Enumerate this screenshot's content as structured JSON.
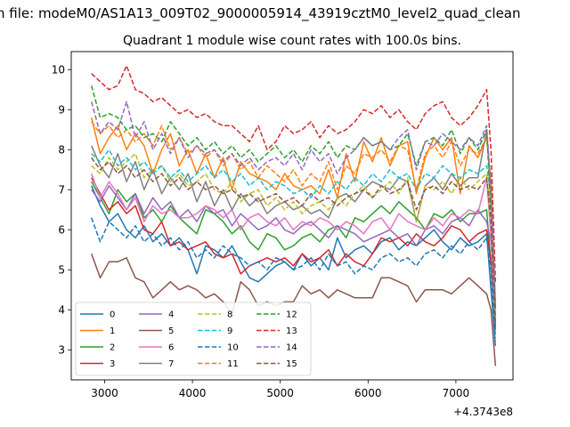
{
  "figure": {
    "suptitle": "n file: modeM0/AS1A13_009T02_9000005914_43919cztM0_level2_quad_clean"
  },
  "chart_data": {
    "type": "line",
    "title": "Quadrant 1 module wise count rates with 100.0s bins.",
    "xlabel": "",
    "ylabel": "",
    "x_offset_label": "+4.3743e8",
    "xlim": [
      2620,
      7650
    ],
    "ylim": [
      2.25,
      10.45
    ],
    "xticks": [
      3000,
      4000,
      5000,
      6000,
      7000
    ],
    "yticks": [
      3,
      4,
      5,
      6,
      7,
      8,
      9,
      10
    ],
    "grid": false,
    "legend_position": "lower-left",
    "legend_columns": 4,
    "x": [
      2850,
      2950,
      3050,
      3150,
      3250,
      3350,
      3450,
      3550,
      3650,
      3750,
      3850,
      3950,
      4050,
      4150,
      4250,
      4350,
      4450,
      4550,
      4650,
      4750,
      4850,
      4950,
      5050,
      5150,
      5250,
      5350,
      5450,
      5550,
      5650,
      5750,
      5850,
      5950,
      6050,
      6150,
      6250,
      6350,
      6450,
      6550,
      6650,
      6750,
      6850,
      6950,
      7050,
      7150,
      7250,
      7350,
      7400,
      7450
    ],
    "series": [
      {
        "name": "0",
        "color": "#1f77b4",
        "dash": "solid",
        "values": [
          7.1,
          6.6,
          6.2,
          6.4,
          6.0,
          5.8,
          6.1,
          5.7,
          5.9,
          5.6,
          5.8,
          5.5,
          4.9,
          5.6,
          5.5,
          5.3,
          5.6,
          5.2,
          4.8,
          4.7,
          4.9,
          5.1,
          5.2,
          5.0,
          5.4,
          5.1,
          5.3,
          5.0,
          5.8,
          5.3,
          5.5,
          5.6,
          5.4,
          5.7,
          5.8,
          5.5,
          5.7,
          5.6,
          5.8,
          6.0,
          5.7,
          5.5,
          5.8,
          5.6,
          5.7,
          5.9,
          4.5,
          3.1
        ]
      },
      {
        "name": "1",
        "color": "#ff7f0e",
        "dash": "solid",
        "values": [
          8.8,
          7.9,
          8.3,
          8.6,
          8.0,
          8.4,
          8.1,
          7.4,
          8.0,
          8.4,
          7.6,
          8.0,
          7.4,
          7.9,
          7.3,
          7.8,
          7.0,
          7.7,
          7.4,
          7.3,
          7.2,
          7.0,
          7.4,
          7.1,
          7.0,
          7.1,
          6.9,
          7.5,
          6.8,
          7.9,
          7.2,
          8.2,
          7.7,
          8.3,
          7.6,
          8.1,
          8.2,
          6.9,
          7.8,
          8.3,
          8.0,
          8.3,
          6.9,
          8.1,
          7.8,
          8.3,
          7.2,
          4.0
        ]
      },
      {
        "name": "2",
        "color": "#2ca02c",
        "dash": "solid",
        "values": [
          7.2,
          6.8,
          6.4,
          7.0,
          6.7,
          6.9,
          6.3,
          6.5,
          6.2,
          6.6,
          6.3,
          6.1,
          5.9,
          6.5,
          6.4,
          6.2,
          5.9,
          6.1,
          5.7,
          5.5,
          5.9,
          5.8,
          5.5,
          5.6,
          5.8,
          5.9,
          5.7,
          6.0,
          6.1,
          5.8,
          6.3,
          6.2,
          6.4,
          6.6,
          6.4,
          6.7,
          6.5,
          6.3,
          6.0,
          6.4,
          6.3,
          6.5,
          6.2,
          6.4,
          6.4,
          6.5,
          5.1,
          3.6
        ]
      },
      {
        "name": "3",
        "color": "#d62728",
        "dash": "solid",
        "values": [
          7.3,
          6.9,
          6.5,
          6.7,
          6.4,
          6.6,
          6.0,
          5.9,
          6.2,
          5.6,
          5.7,
          5.5,
          5.6,
          5.7,
          5.4,
          5.3,
          5.4,
          4.9,
          5.1,
          5.2,
          5.3,
          5.2,
          5.3,
          5.1,
          5.4,
          5.2,
          5.3,
          5.5,
          5.1,
          5.4,
          5.2,
          5.1,
          5.4,
          5.8,
          5.7,
          5.8,
          5.6,
          5.9,
          5.7,
          5.6,
          5.8,
          6.1,
          6.0,
          5.7,
          5.9,
          6.0,
          5.2,
          3.8
        ]
      },
      {
        "name": "4",
        "color": "#9467bd",
        "dash": "solid",
        "values": [
          7.0,
          6.7,
          7.1,
          6.8,
          6.5,
          6.9,
          6.4,
          6.8,
          6.5,
          6.7,
          6.3,
          6.5,
          6.2,
          6.6,
          6.4,
          6.5,
          6.1,
          6.4,
          6.2,
          6.0,
          6.1,
          6.3,
          6.0,
          5.9,
          6.1,
          6.2,
          6.0,
          5.8,
          6.1,
          6.0,
          5.9,
          5.7,
          5.8,
          5.9,
          6.0,
          5.8,
          5.9,
          5.6,
          6.0,
          6.1,
          5.9,
          6.2,
          6.3,
          6.1,
          6.5,
          6.2,
          5.7,
          3.8
        ]
      },
      {
        "name": "5",
        "color": "#8c564b",
        "dash": "solid",
        "values": [
          5.4,
          4.8,
          5.2,
          5.2,
          5.3,
          4.8,
          4.7,
          4.3,
          4.5,
          4.7,
          4.5,
          4.6,
          4.5,
          4.3,
          4.4,
          4.2,
          3.9,
          4.7,
          4.5,
          4.1,
          4.2,
          4.1,
          4.2,
          4.2,
          4.6,
          4.4,
          4.5,
          4.3,
          4.5,
          4.4,
          4.3,
          4.3,
          4.3,
          4.8,
          4.8,
          4.7,
          4.6,
          4.2,
          4.5,
          4.5,
          4.5,
          4.4,
          4.6,
          4.8,
          4.6,
          4.4,
          4.0,
          2.6
        ]
      },
      {
        "name": "6",
        "color": "#e377c2",
        "dash": "solid",
        "values": [
          7.4,
          6.8,
          7.2,
          6.9,
          6.5,
          6.8,
          6.2,
          6.6,
          6.4,
          6.5,
          6.3,
          6.3,
          6.4,
          6.6,
          6.5,
          6.3,
          6.5,
          6.0,
          6.3,
          6.4,
          6.2,
          6.1,
          6.3,
          6.0,
          6.2,
          6.1,
          6.3,
          6.2,
          6.0,
          6.2,
          6.1,
          5.9,
          6.2,
          6.3,
          6.0,
          6.4,
          6.2,
          6.1,
          6.0,
          6.3,
          6.1,
          6.4,
          6.3,
          6.5,
          6.4,
          7.3,
          5.8,
          3.6
        ]
      },
      {
        "name": "7",
        "color": "#7f7f7f",
        "dash": "solid",
        "values": [
          8.1,
          7.6,
          7.3,
          7.9,
          7.2,
          7.7,
          7.0,
          7.5,
          6.9,
          7.3,
          7.0,
          7.4,
          6.7,
          7.2,
          6.6,
          7.0,
          6.5,
          6.9,
          6.6,
          6.8,
          6.4,
          6.6,
          6.7,
          6.5,
          6.6,
          6.4,
          6.5,
          6.3,
          6.8,
          6.9,
          6.7,
          7.0,
          7.2,
          7.1,
          7.0,
          7.3,
          7.2,
          6.2,
          7.1,
          7.3,
          7.0,
          7.4,
          7.1,
          7.3,
          7.3,
          8.5,
          6.8,
          3.5
        ]
      },
      {
        "name": "8",
        "color": "#bcbd22",
        "dash": "dashed",
        "values": [
          7.6,
          7.4,
          7.8,
          7.5,
          7.7,
          7.9,
          7.3,
          7.5,
          7.6,
          7.2,
          7.4,
          7.1,
          7.2,
          7.4,
          7.0,
          6.9,
          7.2,
          6.7,
          6.9,
          7.0,
          6.6,
          6.8,
          6.5,
          6.7,
          6.4,
          6.6,
          6.7,
          6.5,
          6.8,
          6.6,
          6.9,
          7.1,
          6.8,
          7.0,
          7.2,
          6.9,
          7.3,
          6.2,
          7.1,
          7.0,
          7.2,
          6.9,
          7.3,
          7.0,
          7.2,
          7.4,
          6.5,
          3.7
        ]
      },
      {
        "name": "9",
        "color": "#17becf",
        "dash": "dashed",
        "values": [
          7.9,
          7.7,
          8.0,
          7.6,
          7.8,
          7.5,
          7.7,
          7.4,
          7.6,
          7.3,
          7.5,
          7.2,
          7.4,
          7.6,
          7.3,
          7.5,
          7.2,
          7.4,
          7.1,
          7.3,
          7.0,
          7.2,
          7.1,
          6.9,
          7.0,
          6.8,
          7.1,
          6.9,
          7.2,
          7.0,
          7.3,
          7.1,
          7.4,
          7.2,
          7.5,
          7.3,
          7.4,
          7.0,
          7.4,
          7.3,
          7.6,
          7.4,
          7.3,
          7.5,
          7.4,
          7.6,
          6.9,
          3.8
        ]
      },
      {
        "name": "10",
        "color": "#1f77b4",
        "dash": "dashed",
        "values": [
          6.3,
          5.7,
          6.2,
          6.0,
          5.8,
          6.1,
          5.7,
          5.9,
          5.6,
          5.8,
          5.5,
          5.7,
          5.3,
          5.5,
          5.3,
          5.6,
          5.4,
          5.3,
          5.1,
          5.2,
          5.0,
          5.3,
          5.2,
          5.0,
          5.1,
          5.3,
          5.0,
          5.4,
          5.1,
          5.2,
          4.9,
          5.1,
          5.0,
          5.3,
          5.4,
          5.2,
          5.3,
          5.1,
          5.4,
          5.5,
          5.3,
          5.6,
          5.4,
          5.7,
          5.5,
          5.8,
          5.0,
          3.3
        ]
      },
      {
        "name": "11",
        "color": "#ff7f0e",
        "dash": "dashed",
        "values": [
          8.7,
          8.4,
          8.6,
          8.3,
          8.5,
          8.2,
          8.4,
          8.1,
          8.6,
          8.0,
          8.3,
          7.9,
          8.1,
          7.8,
          8.0,
          7.6,
          7.9,
          7.5,
          7.7,
          7.3,
          7.6,
          7.4,
          7.2,
          7.5,
          7.1,
          7.4,
          7.2,
          7.7,
          7.0,
          7.6,
          7.4,
          7.9,
          7.8,
          8.0,
          7.7,
          8.1,
          8.0,
          7.0,
          7.9,
          8.1,
          7.8,
          8.2,
          7.6,
          8.0,
          7.9,
          8.3,
          7.1,
          4.1
        ]
      },
      {
        "name": "12",
        "color": "#2ca02c",
        "dash": "dashed",
        "values": [
          9.6,
          8.8,
          8.9,
          8.8,
          8.5,
          8.6,
          8.3,
          8.4,
          8.2,
          8.7,
          8.4,
          8.1,
          8.3,
          8.0,
          8.2,
          7.9,
          8.1,
          7.8,
          8.0,
          7.7,
          7.9,
          8.1,
          7.8,
          8.0,
          7.7,
          8.1,
          7.9,
          8.2,
          7.8,
          8.1,
          8.0,
          8.3,
          8.1,
          8.2,
          8.0,
          8.1,
          8.4,
          7.6,
          8.2,
          8.3,
          8.1,
          8.5,
          7.9,
          8.3,
          8.0,
          8.5,
          6.4,
          4.0
        ]
      },
      {
        "name": "13",
        "color": "#d62728",
        "dash": "dashed",
        "values": [
          9.9,
          9.7,
          9.5,
          9.6,
          10.1,
          9.5,
          9.4,
          9.2,
          9.3,
          9.1,
          8.9,
          9.0,
          8.8,
          8.9,
          8.7,
          8.6,
          8.6,
          8.4,
          8.2,
          8.6,
          8.0,
          8.2,
          8.6,
          8.4,
          8.5,
          8.7,
          8.3,
          8.6,
          8.4,
          8.5,
          8.7,
          9.0,
          8.9,
          9.1,
          8.8,
          9.0,
          8.7,
          8.5,
          8.9,
          9.1,
          9.2,
          8.8,
          8.6,
          8.8,
          9.1,
          9.5,
          8.0,
          4.7
        ]
      },
      {
        "name": "14",
        "color": "#9467bd",
        "dash": "dashed",
        "values": [
          9.2,
          8.4,
          8.7,
          8.5,
          9.2,
          8.3,
          8.7,
          8.0,
          8.4,
          7.9,
          8.3,
          7.8,
          8.1,
          7.9,
          8.0,
          7.7,
          7.9,
          7.6,
          7.8,
          7.5,
          7.7,
          7.8,
          7.6,
          7.9,
          7.5,
          8.0,
          7.7,
          7.9,
          7.4,
          7.8,
          8.0,
          8.3,
          8.1,
          8.2,
          8.0,
          8.3,
          8.5,
          7.5,
          8.2,
          8.1,
          8.4,
          8.2,
          8.0,
          8.3,
          8.1,
          8.6,
          7.0,
          4.2
        ]
      },
      {
        "name": "15",
        "color": "#8c564b",
        "dash": "dashed",
        "values": [
          7.8,
          7.5,
          7.7,
          7.4,
          7.6,
          7.3,
          7.5,
          7.2,
          7.4,
          7.1,
          7.3,
          7.0,
          7.2,
          7.0,
          7.1,
          6.9,
          7.0,
          6.8,
          6.9,
          6.7,
          6.8,
          6.9,
          6.7,
          6.8,
          6.6,
          6.9,
          6.7,
          6.8,
          6.6,
          6.8,
          6.9,
          7.0,
          6.8,
          7.1,
          6.9,
          7.0,
          7.2,
          6.5,
          7.0,
          7.1,
          6.9,
          7.2,
          7.0,
          7.1,
          7.0,
          7.3,
          6.2,
          3.6
        ]
      }
    ]
  }
}
